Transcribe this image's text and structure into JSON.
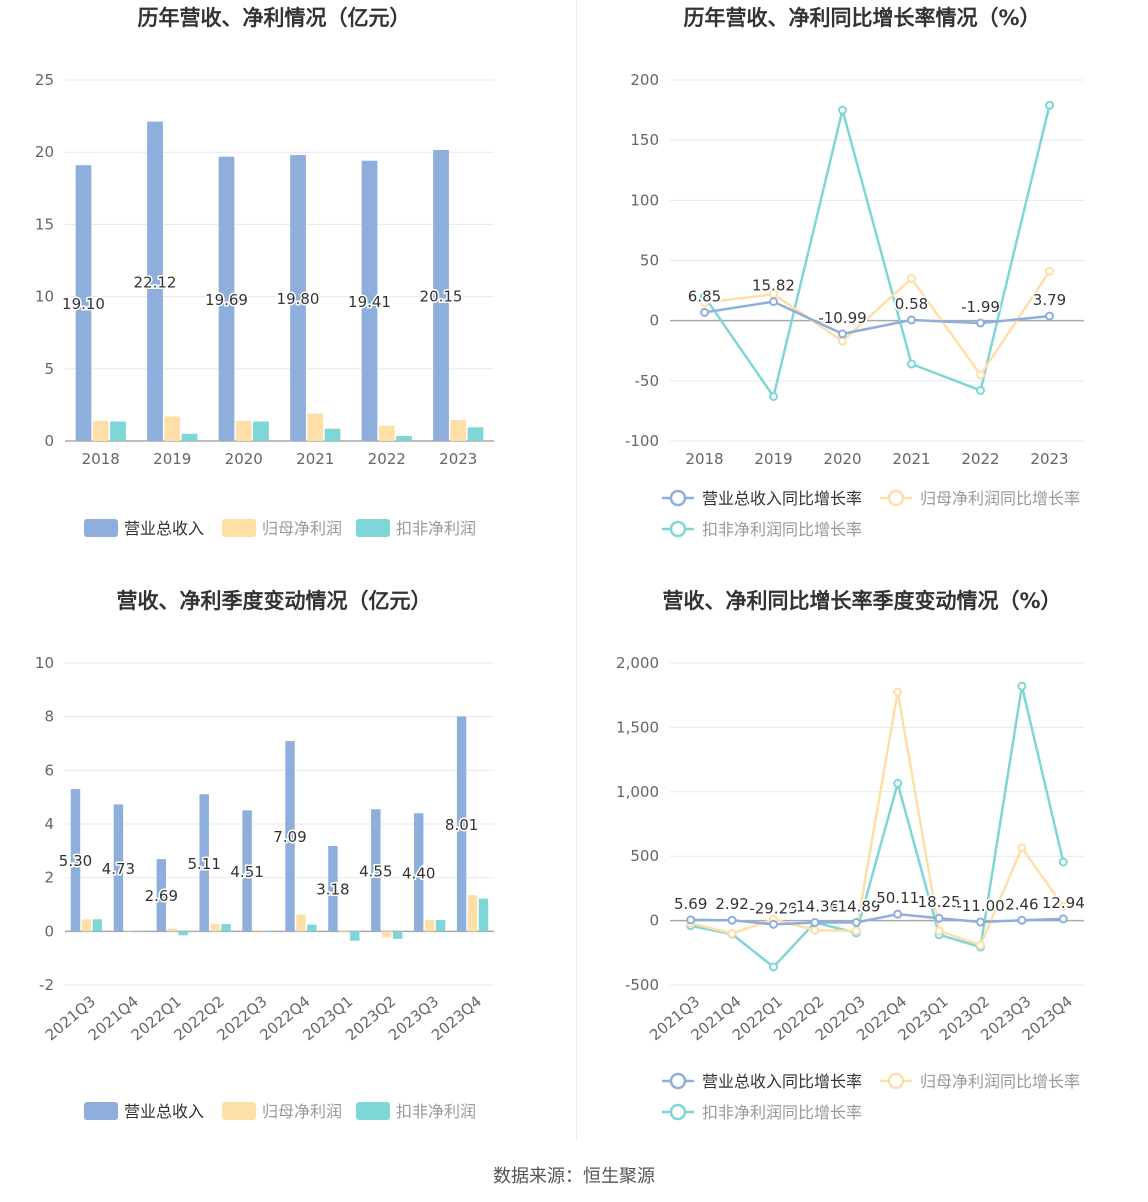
{
  "source": "数据来源：恒生聚源",
  "colors": {
    "revenue": "#8eaedb",
    "netprofit": "#ffdfa8",
    "deducted": "#7fd6d6",
    "grid": "#e6e8f0",
    "axis": "#888888",
    "zero": "#aaaaaa"
  },
  "chart_data": [
    {
      "type": "bar",
      "title": "历年营收、净利情况（亿元）",
      "categories": [
        "2018",
        "2019",
        "2020",
        "2021",
        "2022",
        "2023"
      ],
      "ylim": [
        0,
        25
      ],
      "yticks": [
        0,
        5,
        10,
        15,
        20,
        25
      ],
      "grid": true,
      "legend_position": "bottom",
      "series": [
        {
          "name": "营业总收入",
          "values": [
            19.1,
            22.12,
            19.69,
            19.8,
            19.41,
            20.15
          ],
          "labels": [
            "19.10",
            "22.12",
            "19.69",
            "19.80",
            "19.41",
            "20.15"
          ]
        },
        {
          "name": "归母净利润",
          "values": [
            1.4,
            1.7,
            1.4,
            1.9,
            1.05,
            1.45
          ]
        },
        {
          "name": "扣非净利润",
          "values": [
            1.35,
            0.5,
            1.35,
            0.85,
            0.35,
            0.95
          ]
        }
      ]
    },
    {
      "type": "line",
      "title": "历年营收、净利同比增长率情况（%）",
      "categories": [
        "2018",
        "2019",
        "2020",
        "2021",
        "2022",
        "2023"
      ],
      "ylim": [
        -100,
        200
      ],
      "yticks": [
        -100,
        -50,
        0,
        50,
        100,
        150,
        200
      ],
      "grid": true,
      "legend_position": "bottom",
      "series": [
        {
          "name": "营业总收入同比增长率",
          "values": [
            6.85,
            15.82,
            -10.99,
            0.58,
            -1.99,
            3.79
          ],
          "labels": [
            "6.85",
            "15.82",
            "-10.99",
            "0.58",
            "-1.99",
            "3.79"
          ]
        },
        {
          "name": "归母净利润同比增长率",
          "values": [
            15,
            22,
            -17,
            35,
            -45,
            41
          ]
        },
        {
          "name": "扣非净利润同比增长率",
          "values": [
            20,
            -63,
            175,
            -36,
            -58,
            179
          ]
        }
      ]
    },
    {
      "type": "bar",
      "title": "营收、净利季度变动情况（亿元）",
      "categories": [
        "2021Q3",
        "2021Q4",
        "2022Q1",
        "2022Q2",
        "2022Q3",
        "2022Q4",
        "2023Q1",
        "2023Q2",
        "2023Q3",
        "2023Q4"
      ],
      "ylim": [
        -2,
        10
      ],
      "yticks": [
        -2,
        0,
        2,
        4,
        6,
        8,
        10
      ],
      "grid": true,
      "legend_position": "bottom",
      "series": [
        {
          "name": "营业总收入",
          "values": [
            5.3,
            4.73,
            2.69,
            5.11,
            4.51,
            7.09,
            3.18,
            4.55,
            4.4,
            8.01
          ],
          "labels": [
            "5.30",
            "4.73",
            "2.69",
            "5.11",
            "4.51",
            "7.09",
            "3.18",
            "4.55",
            "4.40",
            "8.01"
          ]
        },
        {
          "name": "归母净利润",
          "values": [
            0.45,
            0.02,
            0.1,
            0.28,
            0.05,
            0.62,
            -0.05,
            -0.22,
            0.42,
            1.35
          ]
        },
        {
          "name": "扣非净利润",
          "values": [
            0.45,
            0.01,
            -0.15,
            0.27,
            0.02,
            0.25,
            -0.35,
            -0.28,
            0.42,
            1.22
          ]
        }
      ]
    },
    {
      "type": "line",
      "title": "营收、净利同比增长率季度变动情况（%）",
      "categories": [
        "2021Q3",
        "2021Q4",
        "2022Q1",
        "2022Q2",
        "2022Q3",
        "2022Q4",
        "2023Q1",
        "2023Q2",
        "2023Q3",
        "2023Q4"
      ],
      "ylim": [
        -500,
        2000
      ],
      "yticks": [
        -500,
        0,
        500,
        1000,
        1500,
        2000
      ],
      "yticklabels": [
        "-500",
        "0",
        "500",
        "1,000",
        "1,500",
        "2,000"
      ],
      "grid": true,
      "legend_position": "bottom",
      "series": [
        {
          "name": "营业总收入同比增长率",
          "values": [
            5.69,
            2.92,
            -29.29,
            -14.36,
            -14.89,
            50.11,
            18.25,
            -11.0,
            2.46,
            12.94
          ],
          "labels": [
            "5.69",
            "2.92",
            "-29.29",
            "-14.36",
            "-14.89",
            "50.11",
            "18.25",
            "-11.00",
            "2.46",
            "12.94"
          ]
        },
        {
          "name": "归母净利润同比增长率",
          "values": [
            -20,
            -100,
            10,
            -75,
            -80,
            1775,
            -80,
            -190,
            565,
            110
          ]
        },
        {
          "name": "扣非净利润同比增长率",
          "values": [
            -40,
            -105,
            -360,
            -15,
            -95,
            1065,
            -110,
            -205,
            1820,
            455
          ]
        }
      ]
    }
  ]
}
